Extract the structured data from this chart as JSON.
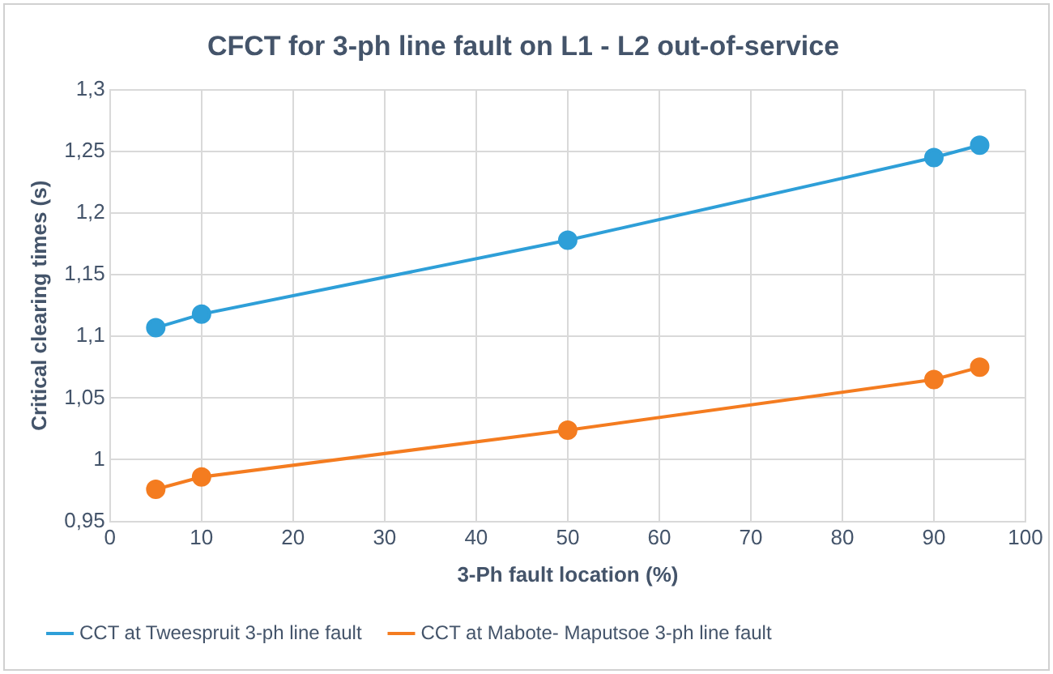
{
  "chart_data": {
    "type": "line",
    "title": "CFCT for 3-ph line fault on L1 - L2 out-of-service",
    "xlabel": "3-Ph fault location (%)",
    "ylabel": "Critical clearing times (s)",
    "x": [
      5,
      10,
      50,
      90,
      95
    ],
    "series": [
      {
        "name": "CCT at Tweespruit 3-ph line fault",
        "color": "#2e9fd8",
        "values": [
          1.107,
          1.118,
          1.178,
          1.245,
          1.255
        ]
      },
      {
        "name": "CCT at Mabote- Maputsoe 3-ph line fault",
        "color": "#f47c20",
        "values": [
          0.976,
          0.986,
          1.024,
          1.065,
          1.075
        ]
      }
    ],
    "xlim": [
      0,
      100
    ],
    "xticks": [
      0,
      10,
      20,
      30,
      40,
      50,
      60,
      70,
      80,
      90,
      100
    ],
    "ylim": [
      0.95,
      1.3
    ],
    "yticks": [
      {
        "value": 0.95,
        "label": "0,95"
      },
      {
        "value": 1,
        "label": "1"
      },
      {
        "value": 1.05,
        "label": "1,05"
      },
      {
        "value": 1.1,
        "label": "1,1"
      },
      {
        "value": 1.15,
        "label": "1,15"
      },
      {
        "value": 1.2,
        "label": "1,2"
      },
      {
        "value": 1.25,
        "label": "1,25"
      },
      {
        "value": 1.3,
        "label": "1,3"
      }
    ],
    "grid": true,
    "legend": "bottom",
    "marker": "circle",
    "line_style": "solid"
  }
}
